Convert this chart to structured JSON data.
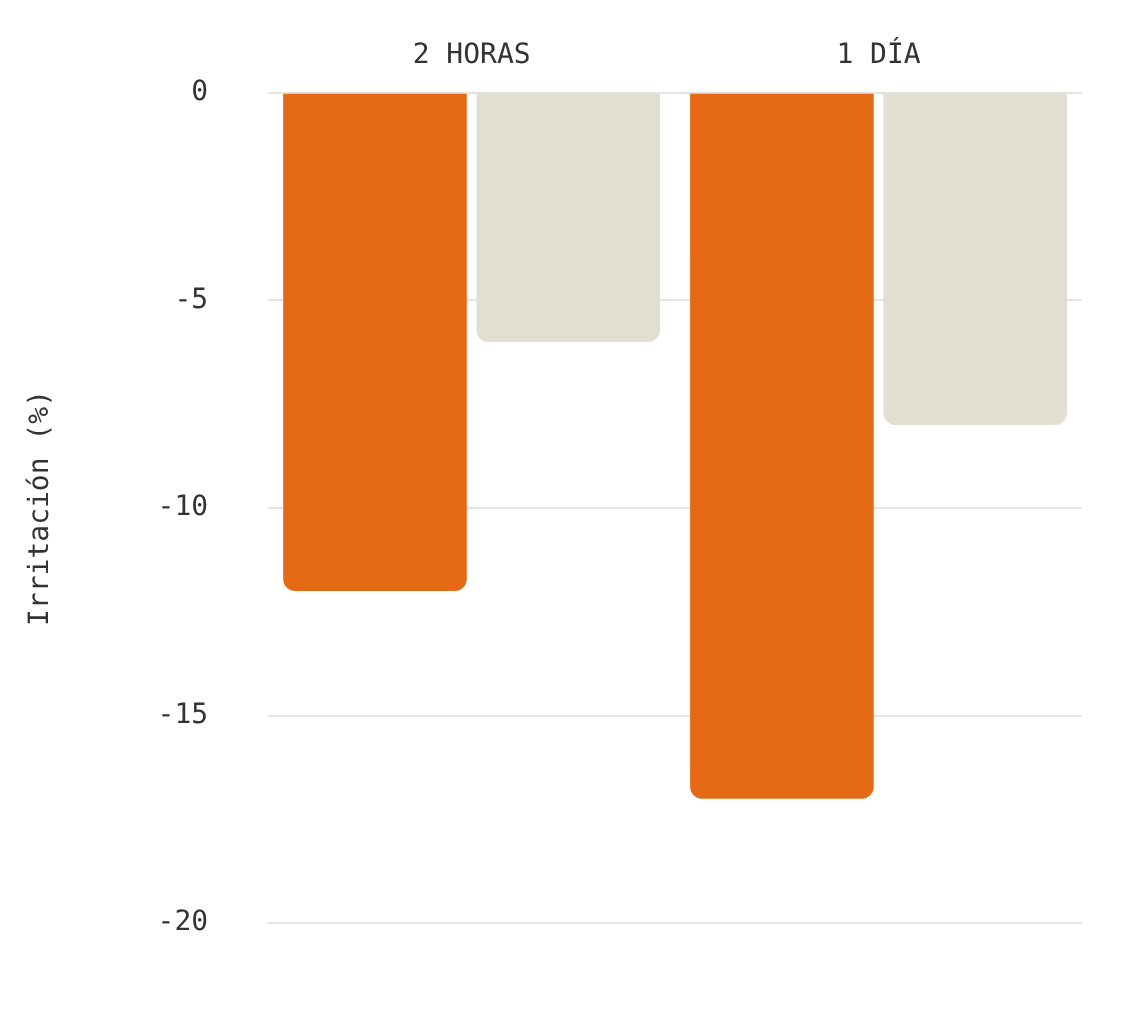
{
  "chart_data": {
    "type": "bar",
    "ylabel": "Irritación (%)",
    "categories": [
      "2 HORAS",
      "1 DÍA"
    ],
    "series": [
      {
        "color": "#e56a15",
        "values": [
          -12,
          -17
        ]
      },
      {
        "color": "#e0dfd2",
        "values": [
          -6,
          -8
        ]
      }
    ],
    "ylim": [
      -20,
      0
    ],
    "yticks": [
      -20,
      -15,
      -10,
      -5,
      0
    ],
    "grid": "y",
    "legend": false
  }
}
